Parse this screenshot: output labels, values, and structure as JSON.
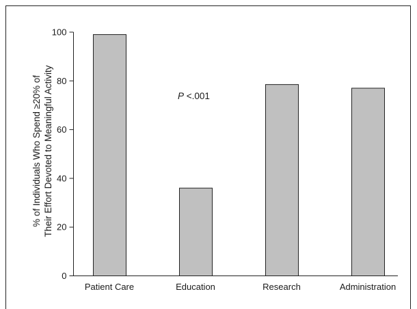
{
  "chart_data": {
    "type": "bar",
    "categories": [
      "Patient Care",
      "Education",
      "Research",
      "Administration"
    ],
    "values": [
      99,
      36,
      78.5,
      77
    ],
    "ylabel_lines": [
      "% of Individuals Who Spend ≥20% of",
      "Their Effort Devoted to Meaningful Activity"
    ],
    "ylim": [
      0,
      100
    ],
    "yticks": [
      0,
      20,
      40,
      60,
      80,
      100
    ],
    "annotation": {
      "italic": "P",
      "text": " <.001"
    },
    "bar_color": "#c0c0c0",
    "grid": false,
    "legend": "none"
  }
}
